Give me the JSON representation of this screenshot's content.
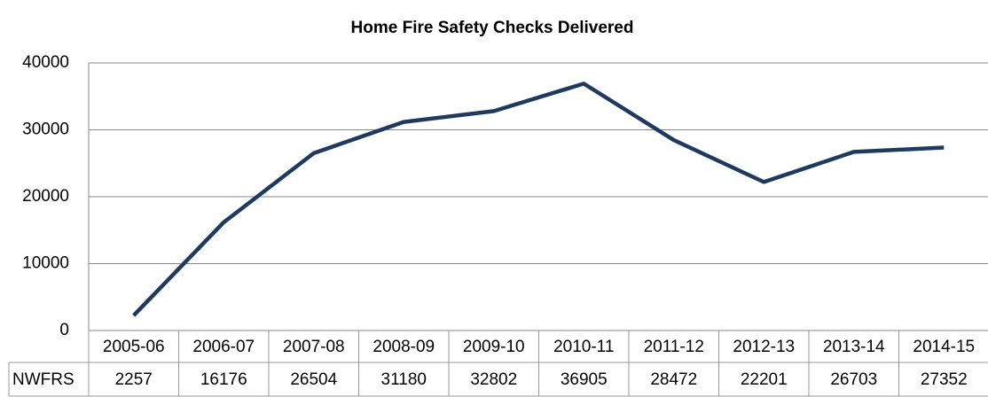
{
  "chart_data": {
    "type": "line",
    "title": "Home Fire Safety Checks Delivered",
    "categories": [
      "2005-06",
      "2006-07",
      "2007-08",
      "2008-09",
      "2009-10",
      "2010-11",
      "2011-12",
      "2012-13",
      "2013-14",
      "2014-15"
    ],
    "series": [
      {
        "name": "NWFRS",
        "color": "#1f3a5f",
        "values": [
          2257,
          16176,
          26504,
          31180,
          32802,
          36905,
          28472,
          22201,
          26703,
          27352
        ]
      }
    ],
    "ylim": [
      0,
      40000
    ],
    "yticks": [
      0,
      10000,
      20000,
      30000,
      40000
    ],
    "grid": true
  }
}
